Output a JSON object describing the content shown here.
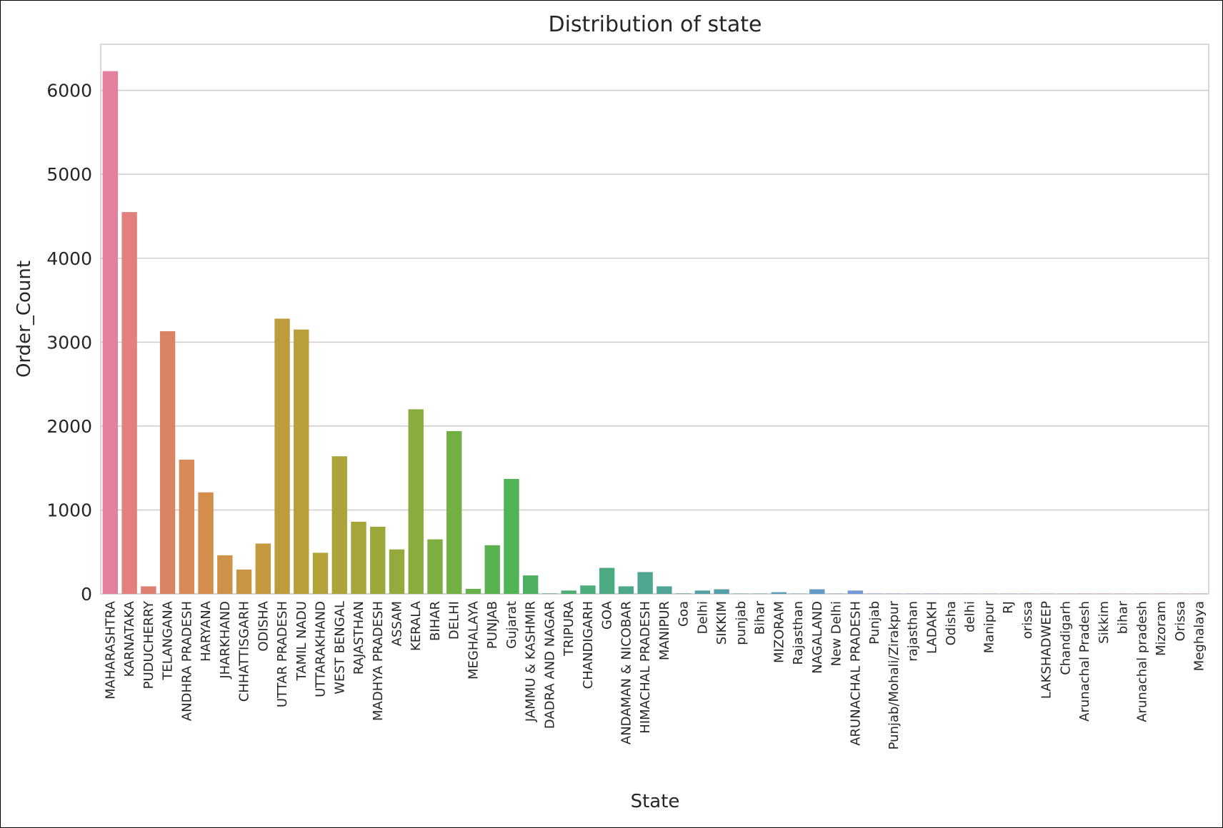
{
  "chart_data": {
    "type": "bar",
    "title": "Distribution of state",
    "xlabel": "State",
    "ylabel": "Order_Count",
    "ylim": [
      0,
      6550
    ],
    "yticks": [
      0,
      1000,
      2000,
      3000,
      4000,
      5000,
      6000
    ],
    "grid": "horizontal",
    "categories": [
      "MAHARASHTRA",
      "KARNATAKA",
      "PUDUCHERRY",
      "TELANGANA",
      "ANDHRA PRADESH",
      "HARYANA",
      "JHARKHAND",
      "CHHATTISGARH",
      "ODISHA",
      "UTTAR PRADESH",
      "TAMIL NADU",
      "UTTARAKHAND",
      "WEST BENGAL",
      "RAJASTHAN",
      "MADHYA PRADESH",
      "ASSAM",
      "KERALA",
      "BIHAR",
      "DELHI",
      "MEGHALAYA",
      "PUNJAB",
      "Gujarat",
      "JAMMU & KASHMIR",
      "DADRA AND NAGAR",
      "TRIPURA",
      "CHANDIGARH",
      "GOA",
      "ANDAMAN & NICOBAR",
      "HIMACHAL PRADESH",
      "MANIPUR",
      "Goa",
      "Delhi",
      "SIKKIM",
      "punjab",
      "Bihar",
      "MIZORAM",
      "Rajasthan",
      "NAGALAND",
      "New Delhi",
      "ARUNACHAL PRADESH",
      "Punjab",
      "Punjab/Mohali/Zirakpur",
      "rajasthan",
      "LADAKH",
      "Odisha",
      "delhi",
      "Manipur",
      "RJ",
      "orissa",
      "LAKSHADWEEP",
      "Chandigarh",
      "Arunachal Pradesh",
      "Sikkim",
      "bihar",
      "Arunachal pradesh",
      "Mizoram",
      "Orissa",
      "Meghalaya"
    ],
    "values": [
      6230,
      4550,
      90,
      3130,
      1600,
      1210,
      460,
      290,
      600,
      3280,
      3150,
      490,
      1640,
      860,
      800,
      530,
      2200,
      650,
      1940,
      60,
      580,
      1370,
      220,
      5,
      40,
      100,
      310,
      90,
      260,
      90,
      5,
      40,
      55,
      3,
      3,
      20,
      3,
      55,
      3,
      40,
      3,
      3,
      3,
      3,
      2,
      2,
      2,
      2,
      2,
      2,
      2,
      2,
      2,
      2,
      2,
      2,
      2,
      2
    ],
    "colors": [
      "#e3809d",
      "#e1807c",
      "#dd8070",
      "#da8464",
      "#d88a58",
      "#d48e4c",
      "#cf9249",
      "#c99544",
      "#c4993f",
      "#bf9c3b",
      "#b99f3a",
      "#b3a23a",
      "#aca43a",
      "#a4a63a",
      "#9da83b",
      "#94aa3c",
      "#89ac3e",
      "#7eae41",
      "#72b044",
      "#66b149",
      "#5ab24f",
      "#52b256",
      "#4fb15f",
      "#4db068",
      "#4cae72",
      "#4cac7a",
      "#4caa82",
      "#4da889",
      "#4ea690",
      "#4fa496",
      "#51a29c",
      "#52a1a1",
      "#53a0a6",
      "#559fac",
      "#579eb2",
      "#5a9db9",
      "#5e9bc0",
      "#649ac8",
      "#6b99ce",
      "#7497d5",
      "#7e95da",
      "#8993de",
      "#9590e2",
      "#a08de4",
      "#ab8ae4",
      "#b687e2",
      "#c084df",
      "#c982da",
      "#d180d5",
      "#d77fcd",
      "#db7fc4",
      "#df7fba",
      "#e17fb0",
      "#e280a7",
      "#e3809f",
      "#e38098",
      "#e38092",
      "#e3808c"
    ]
  }
}
